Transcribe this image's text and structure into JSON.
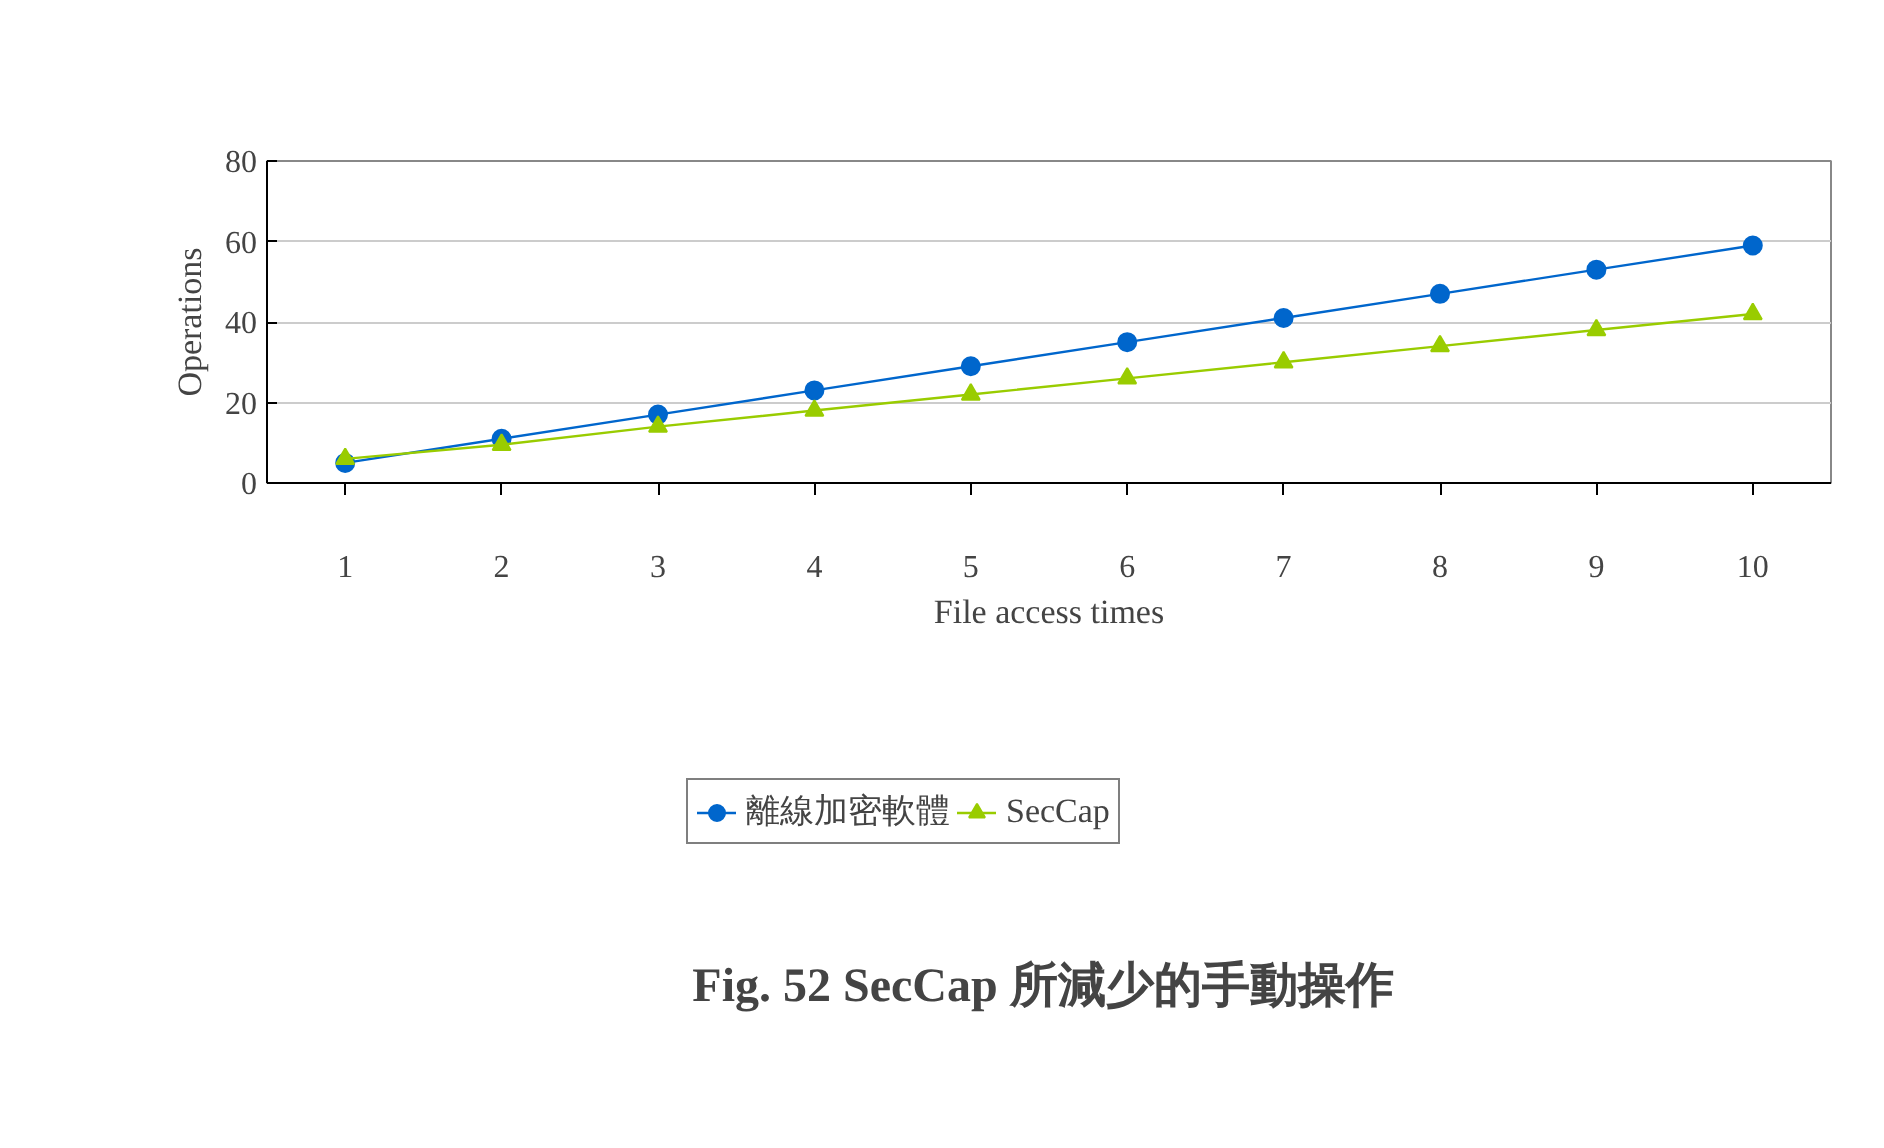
{
  "chart_data": {
    "type": "line",
    "title": "Fig. 52  SecCap 所減少的手動操作",
    "xlabel": "File access times",
    "ylabel": "Operations",
    "categories": [
      "1",
      "2",
      "3",
      "4",
      "5",
      "6",
      "7",
      "8",
      "9",
      "10"
    ],
    "series": [
      {
        "name": "離線加密軟體",
        "color": "#0066cc",
        "marker": "circle",
        "values": [
          5,
          11,
          17,
          23,
          29,
          35,
          41,
          47,
          53,
          59
        ]
      },
      {
        "name": "SecCap",
        "color": "#99cc00",
        "marker": "triangle",
        "values": [
          6,
          9.5,
          14,
          18,
          22,
          26,
          30,
          34,
          38,
          42
        ]
      }
    ],
    "ylim": [
      0,
      80
    ],
    "yticks": [
      0,
      20,
      40,
      60,
      80
    ],
    "grid": "y",
    "legend": "bottom",
    "line_style": "solid"
  }
}
